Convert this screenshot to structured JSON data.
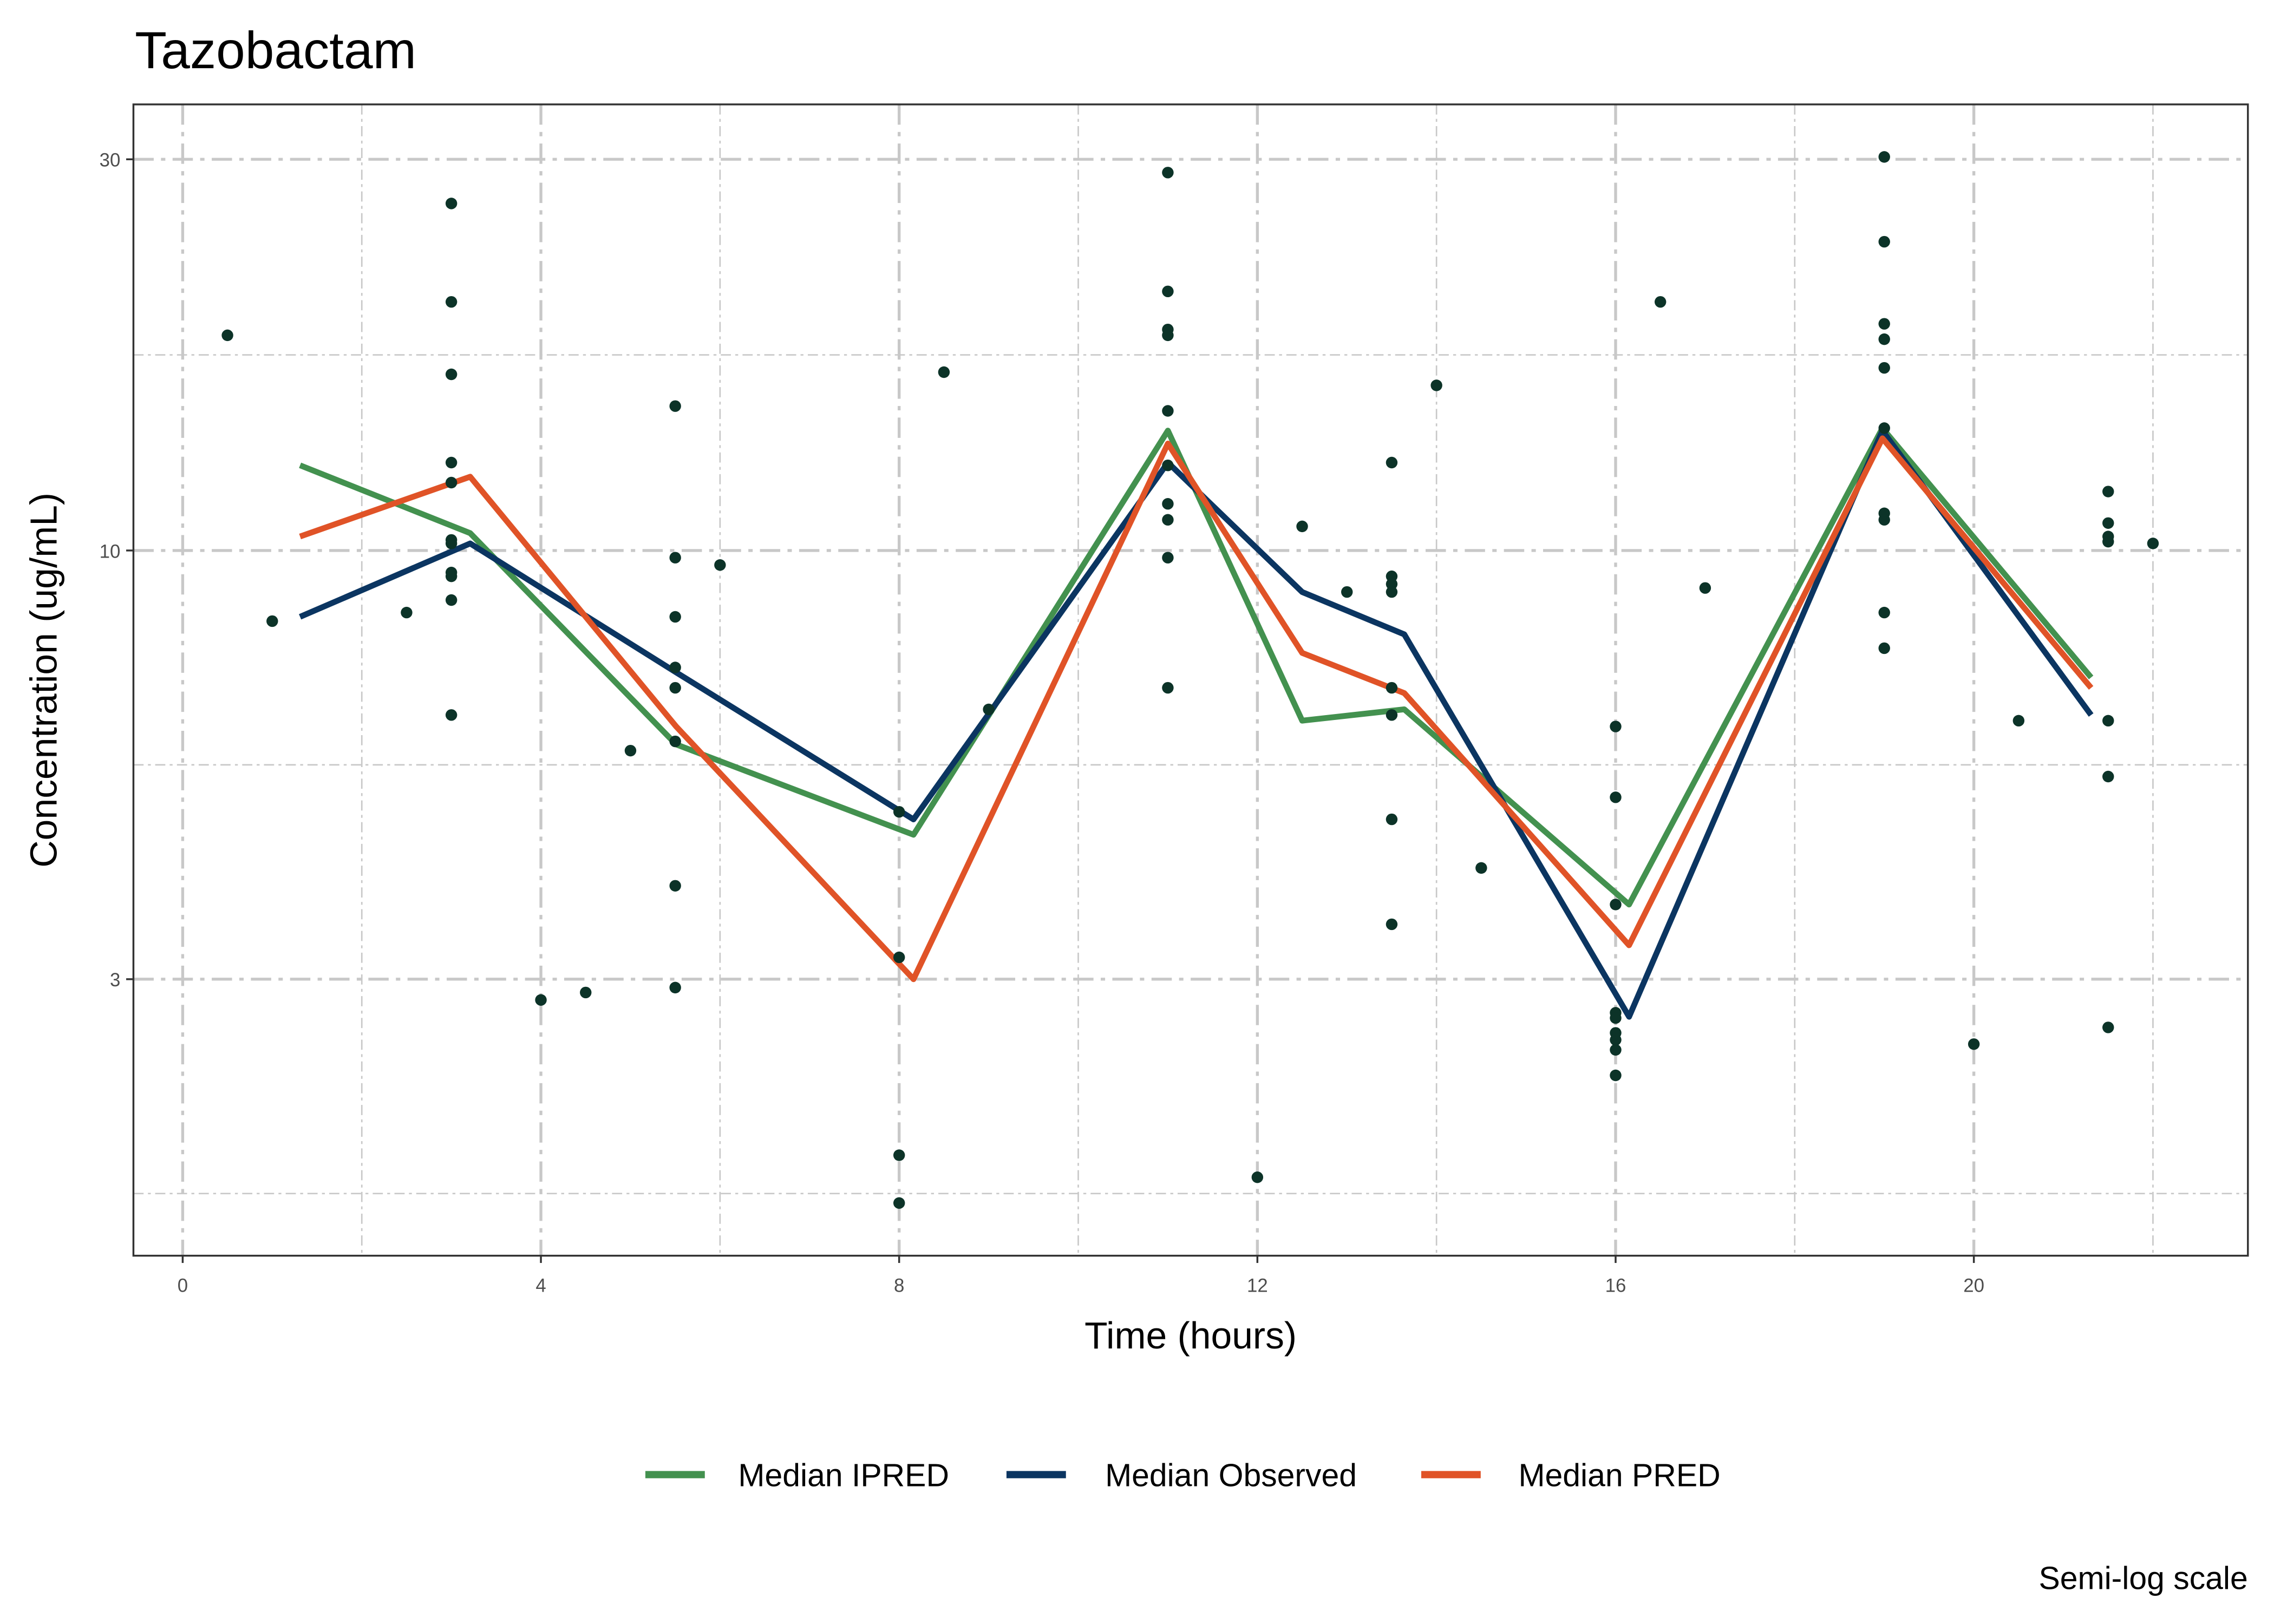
{
  "chart_data": {
    "type": "line",
    "title": "Tazobactam",
    "xlabel": "Time (hours)",
    "ylabel": "Concentration (ug/mL)",
    "caption": "Semi-log scale",
    "xlim": [
      -0.55,
      23.06
    ],
    "ylim": [
      1.38,
      35
    ],
    "y_scale": "log10",
    "x_ticks": [
      0,
      4,
      8,
      12,
      16,
      20
    ],
    "x_tick_labels": [
      "0",
      "4",
      "8",
      "12",
      "16",
      "20"
    ],
    "y_ticks": [
      3,
      10,
      30
    ],
    "y_tick_labels": [
      "3",
      "10",
      "30"
    ],
    "grid": true,
    "legend_position": "bottom",
    "colors": {
      "ipred": "#43914f",
      "observed": "#0b3561",
      "pred": "#e05327",
      "points": "#0c3328",
      "grid": "#c8c8c8"
    },
    "series": [
      {
        "name": "Median IPRED",
        "color": "#43914f",
        "x": [
          1.31,
          3.21,
          5.51,
          8.16,
          11.0,
          12.5,
          13.64,
          16.15,
          18.98,
          21.31
        ],
        "y": [
          12.7,
          10.5,
          5.8,
          4.5,
          14.0,
          6.2,
          6.4,
          3.7,
          14.1,
          7.0
        ]
      },
      {
        "name": "Median Observed",
        "color": "#0b3561",
        "x": [
          1.31,
          3.21,
          5.51,
          8.16,
          11.0,
          12.5,
          13.64,
          16.15,
          18.98,
          21.31
        ],
        "y": [
          8.3,
          10.2,
          7.1,
          4.7,
          12.8,
          8.9,
          7.9,
          2.7,
          14.0,
          6.3
        ]
      },
      {
        "name": "Median PRED",
        "color": "#e05327",
        "x": [
          1.31,
          3.21,
          5.51,
          8.16,
          11.0,
          12.5,
          13.64,
          16.15,
          18.98,
          21.31
        ],
        "y": [
          10.4,
          12.3,
          6.1,
          3.0,
          13.5,
          7.5,
          6.7,
          3.3,
          13.7,
          6.8
        ]
      }
    ],
    "points": [
      [
        0.5,
        18.3
      ],
      [
        1,
        8.2
      ],
      [
        2.5,
        8.4
      ],
      [
        3,
        26.5
      ],
      [
        3,
        20.1
      ],
      [
        3,
        16.4
      ],
      [
        3,
        12.8
      ],
      [
        3,
        12.1
      ],
      [
        3,
        10.3
      ],
      [
        3,
        10.2
      ],
      [
        3,
        9.4
      ],
      [
        3,
        9.3
      ],
      [
        3,
        8.7
      ],
      [
        3,
        6.3
      ],
      [
        4,
        2.83
      ],
      [
        4.5,
        2.89
      ],
      [
        5,
        5.7
      ],
      [
        5.5,
        15.0
      ],
      [
        5.5,
        9.8
      ],
      [
        5.5,
        8.3
      ],
      [
        5.5,
        7.2
      ],
      [
        5.5,
        6.8
      ],
      [
        5.5,
        5.85
      ],
      [
        5.5,
        3.9
      ],
      [
        5.5,
        2.93
      ],
      [
        6,
        9.6
      ],
      [
        8,
        4.8
      ],
      [
        8,
        3.19
      ],
      [
        8,
        1.83
      ],
      [
        8,
        1.6
      ],
      [
        8.5,
        16.5
      ],
      [
        9,
        6.4
      ],
      [
        11,
        28.9
      ],
      [
        11,
        20.7
      ],
      [
        11,
        18.6
      ],
      [
        11,
        18.3
      ],
      [
        11,
        14.8
      ],
      [
        11,
        12.7
      ],
      [
        11,
        11.4
      ],
      [
        11,
        10.9
      ],
      [
        11,
        9.8
      ],
      [
        11,
        6.8
      ],
      [
        12,
        1.72
      ],
      [
        12.5,
        10.7
      ],
      [
        13,
        8.9
      ],
      [
        13.5,
        12.8
      ],
      [
        13.5,
        9.3
      ],
      [
        13.5,
        9.1
      ],
      [
        13.5,
        8.9
      ],
      [
        13.5,
        6.8
      ],
      [
        13.5,
        6.3
      ],
      [
        13.5,
        4.7
      ],
      [
        13.5,
        3.5
      ],
      [
        14,
        15.9
      ],
      [
        14.5,
        4.1
      ],
      [
        16,
        6.1
      ],
      [
        16,
        5.0
      ],
      [
        16,
        3.7
      ],
      [
        16,
        2.73
      ],
      [
        16,
        2.69
      ],
      [
        16,
        2.58
      ],
      [
        16,
        2.53
      ],
      [
        16,
        2.46
      ],
      [
        16,
        2.29
      ],
      [
        16.5,
        20.1
      ],
      [
        17,
        9.0
      ],
      [
        19,
        30.2
      ],
      [
        19,
        23.8
      ],
      [
        19,
        18.9
      ],
      [
        19,
        18.1
      ],
      [
        19,
        16.7
      ],
      [
        19,
        14.1
      ],
      [
        19,
        11.1
      ],
      [
        19,
        10.9
      ],
      [
        19,
        8.4
      ],
      [
        19,
        7.6
      ],
      [
        20,
        2.5
      ],
      [
        20.5,
        6.2
      ],
      [
        21.5,
        11.8
      ],
      [
        21.5,
        10.8
      ],
      [
        21.5,
        10.4
      ],
      [
        21.5,
        10.25
      ],
      [
        21.5,
        6.2
      ],
      [
        21.5,
        5.3
      ],
      [
        21.5,
        2.62
      ],
      [
        22,
        10.2
      ]
    ]
  }
}
